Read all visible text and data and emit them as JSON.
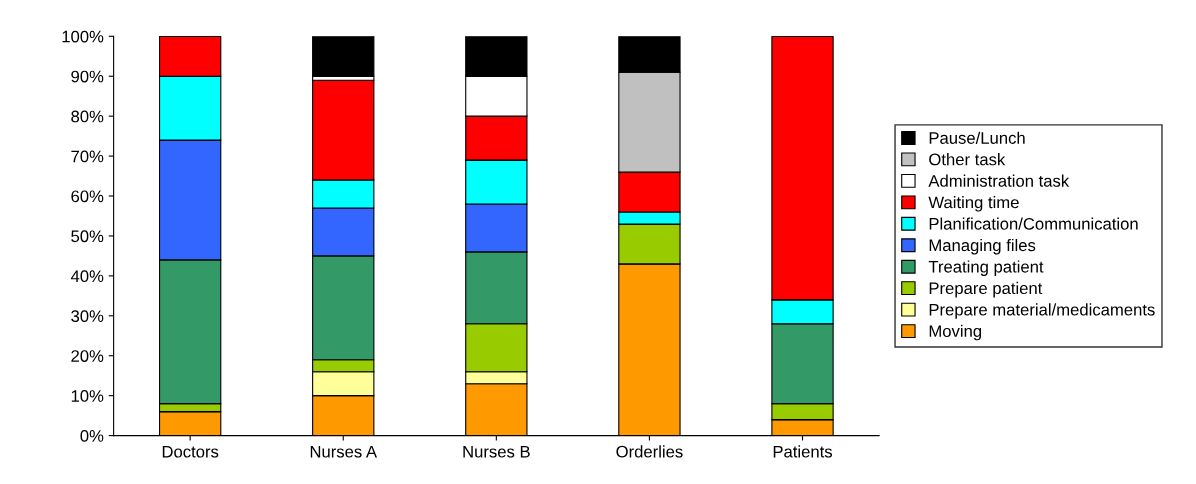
{
  "chart_data": {
    "type": "bar",
    "stacked": true,
    "categories": [
      "Doctors",
      "Nurses A",
      "Nurses B",
      "Orderlies",
      "Patients"
    ],
    "series": [
      {
        "name": "Moving",
        "color": "#ff9900",
        "values": [
          6,
          10,
          13,
          43,
          4
        ]
      },
      {
        "name": "Prepare material/medicaments",
        "color": "#ffff99",
        "values": [
          0,
          6,
          3,
          0,
          0
        ]
      },
      {
        "name": "Prepare patient",
        "color": "#99cc00",
        "values": [
          2,
          3,
          12,
          10,
          4
        ]
      },
      {
        "name": "Treating patient",
        "color": "#339966",
        "values": [
          36,
          26,
          18,
          0,
          20
        ]
      },
      {
        "name": "Managing files",
        "color": "#3366ff",
        "values": [
          30,
          12,
          12,
          0,
          0
        ]
      },
      {
        "name": "Planification/Communication",
        "color": "#00ffff",
        "values": [
          16,
          7,
          11,
          3,
          6
        ]
      },
      {
        "name": "Waiting time",
        "color": "#ff0000",
        "values": [
          10,
          25,
          11,
          10,
          66
        ]
      },
      {
        "name": "Administration task",
        "color": "#ffffff",
        "values": [
          0,
          1,
          10,
          0,
          0
        ]
      },
      {
        "name": "Other task",
        "color": "#c0c0c0",
        "values": [
          0,
          0,
          0,
          25,
          0
        ]
      },
      {
        "name": "Pause/Lunch",
        "color": "#000000",
        "values": [
          0,
          10,
          10,
          9,
          0
        ]
      }
    ],
    "ylim": [
      0,
      100
    ],
    "yticks": [
      {
        "value": 0,
        "label": "0%"
      },
      {
        "value": 10,
        "label": "10%"
      },
      {
        "value": 20,
        "label": "20%"
      },
      {
        "value": 30,
        "label": "30%"
      },
      {
        "value": 40,
        "label": "40%"
      },
      {
        "value": 50,
        "label": "50%"
      },
      {
        "value": 60,
        "label": "60%"
      },
      {
        "value": 70,
        "label": "70%"
      },
      {
        "value": 80,
        "label": "80%"
      },
      {
        "value": 90,
        "label": "90%"
      },
      {
        "value": 100,
        "label": "100%"
      }
    ],
    "grid": false,
    "legend": "right"
  }
}
